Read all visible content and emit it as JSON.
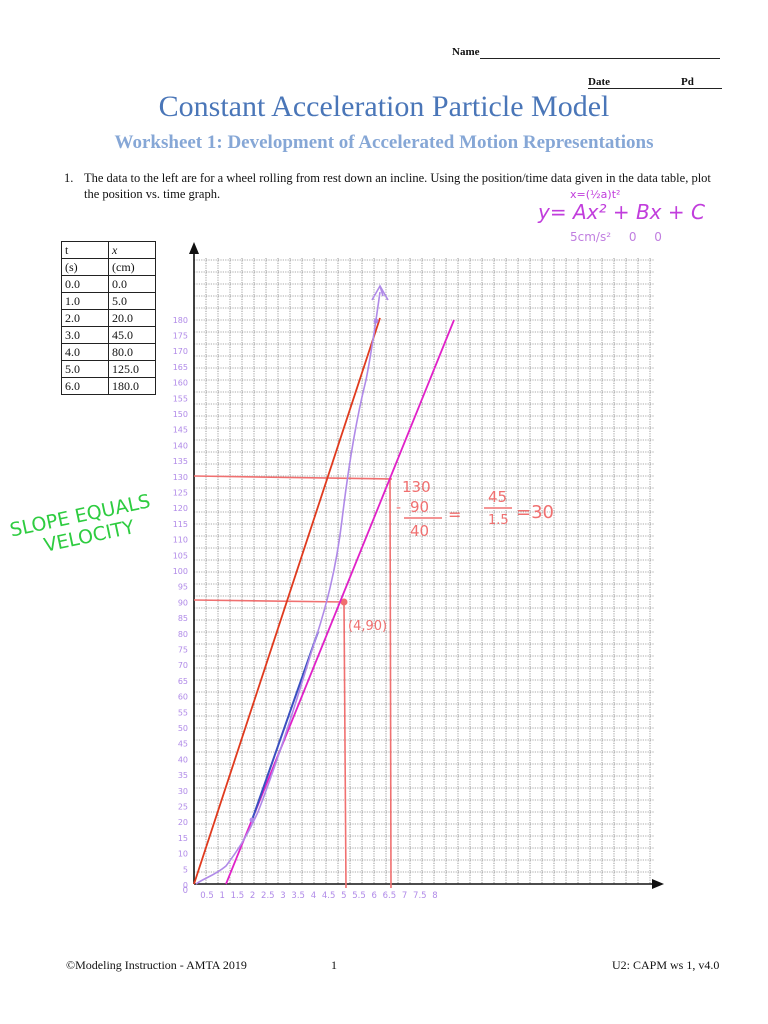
{
  "header": {
    "name_label": "Name",
    "date_label": "Date",
    "pd_label": "Pd"
  },
  "title": "Constant Acceleration Particle Model",
  "subtitle": "Worksheet 1: Development of Accelerated Motion Representations",
  "question": {
    "number": "1.",
    "text": "The data to the left are for a wheel rolling from rest down an incline.  Using the position/time data given in the data table, plot the position vs. time graph."
  },
  "table": {
    "headers": [
      "t",
      "x"
    ],
    "units": [
      "(s)",
      "(cm)"
    ],
    "rows": [
      [
        "0.0",
        "0.0"
      ],
      [
        "1.0",
        "5.0"
      ],
      [
        "2.0",
        "20.0"
      ],
      [
        "3.0",
        "45.0"
      ],
      [
        "4.0",
        "80.0"
      ],
      [
        "5.0",
        "125.0"
      ],
      [
        "6.0",
        "180.0"
      ]
    ]
  },
  "handwriting": {
    "slope_line1": "SLOPE EQUALS",
    "slope_line2": "VELOCITY",
    "formula_top": "x=(½a)t²",
    "formula": "y= Ax² + Bx + C",
    "formula_values": "5cm/s² 0 0",
    "calc_num_top": "130",
    "calc_num_bottom": "90",
    "calc_result_left": "40",
    "calc_eq_num": "45",
    "calc_eq_den": "1.5",
    "calc_result": "=30",
    "point_label": "(4,90)"
  },
  "graph": {
    "y_tick_labels": [
      "0",
      "5",
      "10",
      "15",
      "20",
      "25",
      "30",
      "35",
      "40",
      "45",
      "50",
      "55",
      "60",
      "65",
      "70",
      "75",
      "80",
      "85",
      "90",
      "95",
      "100",
      "105",
      "110",
      "115",
      "120",
      "125",
      "130",
      "135",
      "140",
      "145",
      "150",
      "155",
      "160",
      "165",
      "170",
      "175",
      "180"
    ],
    "x_tick_labels": [
      "0.5",
      "1",
      "1.5",
      "2",
      "2.5",
      "3",
      "3.5",
      "4",
      "4.5",
      "5",
      "5.5",
      "6",
      "6.5",
      "7",
      "7.5",
      "8"
    ],
    "colors": {
      "grid": "#555555",
      "red_line": "#e03a1e",
      "magenta_line": "#e021c8",
      "blue_line": "#3a4fc0",
      "curve": "#b08ae8",
      "salmon": "#f07070",
      "handwriting_green": "#2ecc40",
      "handwriting_purple": "#c13ddc"
    }
  },
  "footer": {
    "left": "©Modeling Instruction - AMTA 2019",
    "page": "1",
    "right": "U2: CAPM ws 1, v4.0"
  }
}
